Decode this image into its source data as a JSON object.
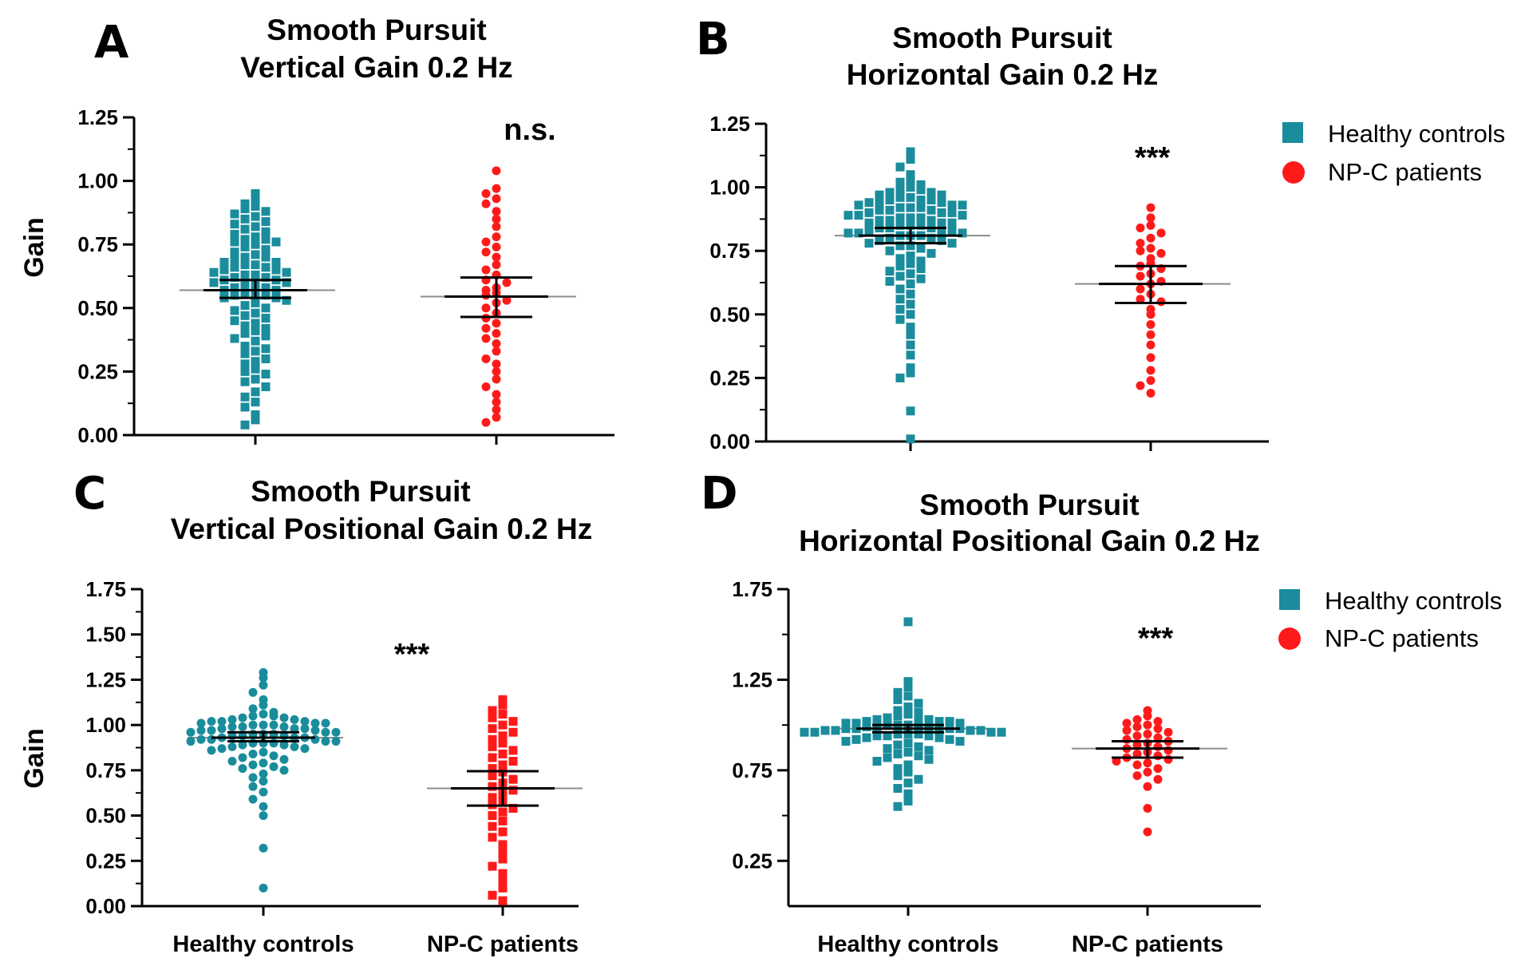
{
  "colors": {
    "controls": "#1a8c9c",
    "patients": "#ff1a1a",
    "mean_line": "#000000",
    "ref_line": "#8c8c8c"
  },
  "legend": {
    "items": [
      {
        "label": "Healthy controls",
        "marker": "square",
        "color": "#1a8c9c"
      },
      {
        "label": "NP-C patients",
        "marker": "circle",
        "color": "#ff1a1a"
      }
    ]
  },
  "chart_data": [
    {
      "panel": "A",
      "type": "scatter",
      "title": [
        "Smooth Pursuit",
        "Vertical Gain 0.2 Hz"
      ],
      "ylabel": "Gain",
      "ylim": [
        0,
        1.25
      ],
      "yticks": [
        "0.00",
        "0.25",
        "0.50",
        "0.75",
        "1.00",
        "1.25"
      ],
      "categories": [
        "Healthy controls",
        "NP-C patients"
      ],
      "show_category_labels": false,
      "significance": "n.s.",
      "series": [
        {
          "name": "Healthy controls",
          "marker": "square",
          "mean": 0.57,
          "ci": [
            0.54,
            0.61
          ],
          "values": [
            0.95,
            0.93,
            0.91,
            0.9,
            0.89,
            0.88,
            0.87,
            0.86,
            0.85,
            0.84,
            0.83,
            0.82,
            0.81,
            0.8,
            0.79,
            0.78,
            0.77,
            0.77,
            0.76,
            0.76,
            0.75,
            0.74,
            0.73,
            0.72,
            0.71,
            0.7,
            0.7,
            0.69,
            0.68,
            0.68,
            0.67,
            0.67,
            0.66,
            0.66,
            0.65,
            0.65,
            0.64,
            0.64,
            0.63,
            0.63,
            0.62,
            0.62,
            0.61,
            0.61,
            0.6,
            0.6,
            0.59,
            0.59,
            0.58,
            0.58,
            0.57,
            0.57,
            0.56,
            0.56,
            0.55,
            0.55,
            0.54,
            0.54,
            0.53,
            0.52,
            0.51,
            0.5,
            0.49,
            0.48,
            0.47,
            0.46,
            0.45,
            0.44,
            0.43,
            0.42,
            0.41,
            0.4,
            0.39,
            0.38,
            0.37,
            0.35,
            0.34,
            0.33,
            0.32,
            0.3,
            0.29,
            0.28,
            0.26,
            0.25,
            0.24,
            0.22,
            0.21,
            0.19,
            0.17,
            0.15,
            0.13,
            0.11,
            0.08,
            0.06,
            0.04
          ]
        },
        {
          "name": "NP-C patients",
          "marker": "circle",
          "mean": 0.545,
          "ci": [
            0.465,
            0.62
          ],
          "values": [
            1.04,
            0.97,
            0.95,
            0.93,
            0.91,
            0.88,
            0.85,
            0.82,
            0.78,
            0.76,
            0.74,
            0.72,
            0.7,
            0.67,
            0.65,
            0.63,
            0.61,
            0.6,
            0.58,
            0.57,
            0.56,
            0.55,
            0.53,
            0.52,
            0.5,
            0.48,
            0.46,
            0.44,
            0.42,
            0.4,
            0.38,
            0.36,
            0.33,
            0.3,
            0.28,
            0.25,
            0.22,
            0.19,
            0.16,
            0.13,
            0.1,
            0.07,
            0.05
          ]
        }
      ]
    },
    {
      "panel": "B",
      "type": "scatter",
      "title": [
        "Smooth Pursuit",
        "Horizontal Gain 0.2 Hz"
      ],
      "ylabel": "",
      "ylim": [
        0,
        1.25
      ],
      "yticks": [
        "0.00",
        "0.25",
        "0.50",
        "0.75",
        "1.00",
        "1.25"
      ],
      "categories": [
        "Healthy controls",
        "NP-C patients"
      ],
      "show_category_labels": false,
      "significance": "***",
      "series": [
        {
          "name": "Healthy controls",
          "marker": "square",
          "mean": 0.81,
          "ci": [
            0.78,
            0.84
          ],
          "values": [
            1.14,
            1.11,
            1.08,
            1.05,
            1.03,
            1.02,
            1.01,
            1.0,
            0.99,
            0.99,
            0.98,
            0.98,
            0.97,
            0.97,
            0.96,
            0.96,
            0.95,
            0.95,
            0.95,
            0.94,
            0.94,
            0.94,
            0.93,
            0.93,
            0.93,
            0.92,
            0.92,
            0.92,
            0.91,
            0.91,
            0.91,
            0.9,
            0.9,
            0.9,
            0.89,
            0.89,
            0.89,
            0.88,
            0.88,
            0.88,
            0.87,
            0.87,
            0.87,
            0.86,
            0.86,
            0.86,
            0.85,
            0.85,
            0.85,
            0.84,
            0.84,
            0.84,
            0.83,
            0.83,
            0.83,
            0.82,
            0.82,
            0.82,
            0.81,
            0.81,
            0.81,
            0.8,
            0.8,
            0.79,
            0.79,
            0.78,
            0.78,
            0.77,
            0.77,
            0.76,
            0.75,
            0.74,
            0.73,
            0.72,
            0.71,
            0.7,
            0.69,
            0.68,
            0.67,
            0.66,
            0.65,
            0.64,
            0.63,
            0.62,
            0.6,
            0.58,
            0.56,
            0.54,
            0.52,
            0.5,
            0.48,
            0.45,
            0.42,
            0.38,
            0.34,
            0.29,
            0.27,
            0.25,
            0.12,
            0.01
          ]
        },
        {
          "name": "NP-C patients",
          "marker": "circle",
          "mean": 0.62,
          "ci": [
            0.545,
            0.69
          ],
          "values": [
            0.92,
            0.88,
            0.85,
            0.84,
            0.82,
            0.8,
            0.78,
            0.76,
            0.75,
            0.74,
            0.72,
            0.7,
            0.69,
            0.68,
            0.66,
            0.65,
            0.63,
            0.62,
            0.6,
            0.58,
            0.56,
            0.55,
            0.52,
            0.5,
            0.46,
            0.42,
            0.38,
            0.33,
            0.28,
            0.24,
            0.22,
            0.19
          ]
        }
      ]
    },
    {
      "panel": "C",
      "type": "scatter",
      "title": [
        "Smooth Pursuit",
        "Vertical Positional Gain 0.2 Hz"
      ],
      "ylabel": "Gain",
      "ylim": [
        0,
        1.75
      ],
      "yticks": [
        "0.00",
        "0.25",
        "0.50",
        "0.75",
        "1.00",
        "1.25",
        "1.50",
        "1.75"
      ],
      "categories": [
        "Healthy controls",
        "NP-C patients"
      ],
      "show_category_labels": true,
      "significance": "***",
      "series": [
        {
          "name": "Healthy controls",
          "marker": "circle",
          "mean": 0.93,
          "ci": [
            0.91,
            0.96
          ],
          "values": [
            1.29,
            1.26,
            1.22,
            1.18,
            1.14,
            1.11,
            1.09,
            1.07,
            1.06,
            1.05,
            1.05,
            1.04,
            1.04,
            1.03,
            1.03,
            1.02,
            1.02,
            1.02,
            1.01,
            1.01,
            1.01,
            1.0,
            1.0,
            1.0,
            0.99,
            0.99,
            0.99,
            0.98,
            0.98,
            0.98,
            0.97,
            0.97,
            0.97,
            0.96,
            0.96,
            0.96,
            0.95,
            0.95,
            0.95,
            0.94,
            0.94,
            0.94,
            0.93,
            0.93,
            0.93,
            0.92,
            0.92,
            0.92,
            0.91,
            0.91,
            0.91,
            0.9,
            0.9,
            0.9,
            0.89,
            0.89,
            0.88,
            0.88,
            0.87,
            0.87,
            0.86,
            0.85,
            0.84,
            0.83,
            0.82,
            0.81,
            0.8,
            0.79,
            0.78,
            0.77,
            0.76,
            0.75,
            0.73,
            0.71,
            0.69,
            0.66,
            0.63,
            0.59,
            0.55,
            0.5,
            0.32,
            0.1
          ]
        },
        {
          "name": "NP-C patients",
          "marker": "square",
          "mean": 0.65,
          "ci": [
            0.555,
            0.745
          ],
          "values": [
            1.14,
            1.11,
            1.08,
            1.06,
            1.04,
            1.02,
            1.0,
            0.98,
            0.96,
            0.94,
            0.92,
            0.9,
            0.88,
            0.86,
            0.84,
            0.82,
            0.8,
            0.78,
            0.76,
            0.74,
            0.72,
            0.7,
            0.68,
            0.66,
            0.64,
            0.62,
            0.6,
            0.58,
            0.56,
            0.54,
            0.52,
            0.5,
            0.47,
            0.44,
            0.41,
            0.38,
            0.34,
            0.3,
            0.26,
            0.22,
            0.18,
            0.14,
            0.1,
            0.06,
            0.03
          ]
        }
      ]
    },
    {
      "panel": "D",
      "type": "scatter",
      "title": [
        "Smooth Pursuit",
        "Horizontal Positional Gain 0.2 Hz"
      ],
      "ylabel": "",
      "ylim": [
        0,
        1.75
      ],
      "yticks": [
        "0.25",
        "0.75",
        "1.25",
        "1.75"
      ],
      "categories": [
        "Healthy controls",
        "NP-C patients"
      ],
      "show_category_labels": true,
      "significance": "***",
      "series": [
        {
          "name": "Healthy controls",
          "marker": "square",
          "mean": 0.98,
          "ci": [
            0.96,
            1.0
          ],
          "values": [
            1.57,
            1.24,
            1.21,
            1.18,
            1.16,
            1.14,
            1.12,
            1.1,
            1.08,
            1.07,
            1.06,
            1.05,
            1.04,
            1.04,
            1.03,
            1.03,
            1.02,
            1.02,
            1.02,
            1.01,
            1.01,
            1.01,
            1.0,
            1.0,
            1.0,
            1.0,
            0.99,
            0.99,
            0.99,
            0.99,
            0.98,
            0.98,
            0.98,
            0.98,
            0.97,
            0.97,
            0.97,
            0.97,
            0.96,
            0.96,
            0.96,
            0.96,
            0.95,
            0.95,
            0.95,
            0.94,
            0.94,
            0.94,
            0.93,
            0.93,
            0.92,
            0.92,
            0.91,
            0.91,
            0.9,
            0.89,
            0.88,
            0.87,
            0.86,
            0.85,
            0.84,
            0.83,
            0.82,
            0.81,
            0.8,
            0.78,
            0.76,
            0.74,
            0.72,
            0.7,
            0.68,
            0.65,
            0.62,
            0.58,
            0.55
          ]
        },
        {
          "name": "NP-C patients",
          "marker": "circle",
          "mean": 0.87,
          "ci": [
            0.82,
            0.91
          ],
          "values": [
            1.08,
            1.05,
            1.03,
            1.02,
            1.01,
            1.0,
            0.99,
            0.98,
            0.97,
            0.96,
            0.95,
            0.94,
            0.93,
            0.92,
            0.91,
            0.9,
            0.89,
            0.88,
            0.87,
            0.86,
            0.85,
            0.84,
            0.83,
            0.82,
            0.81,
            0.8,
            0.79,
            0.78,
            0.76,
            0.74,
            0.72,
            0.7,
            0.66,
            0.54,
            0.41
          ]
        }
      ]
    }
  ]
}
